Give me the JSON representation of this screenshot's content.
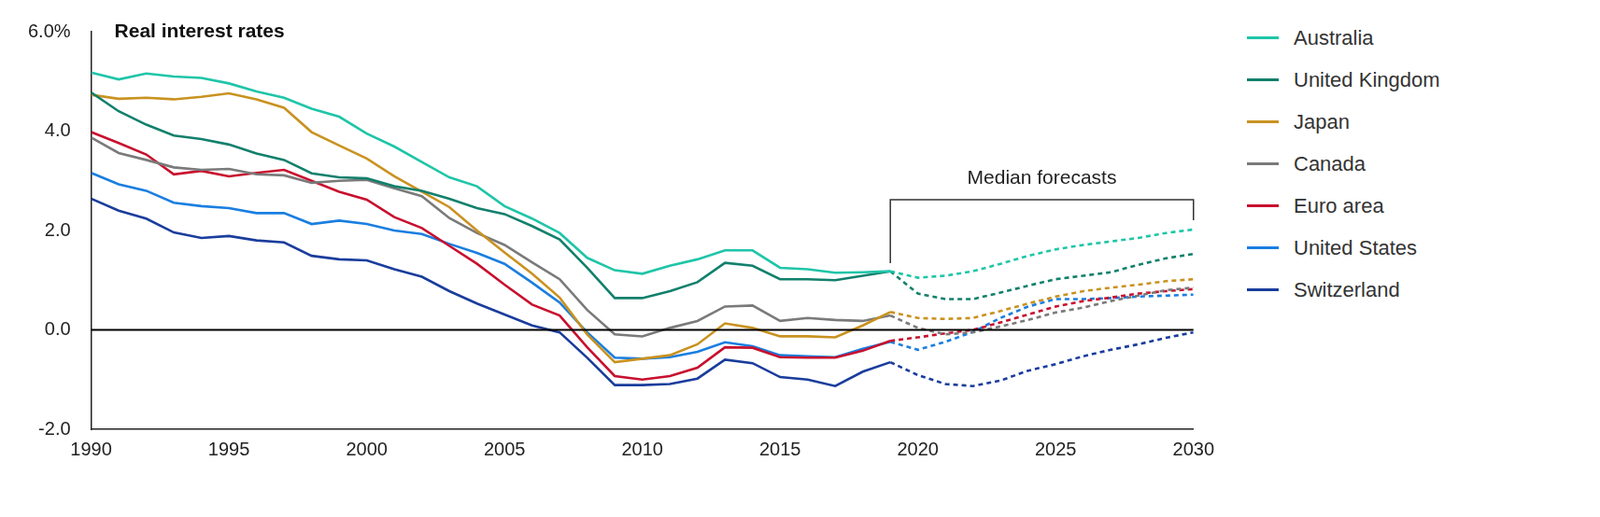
{
  "chart_data": {
    "type": "line",
    "title": "Real interest rates",
    "annotations": [
      {
        "text": "Median forecasts",
        "x": [
          2019,
          2030
        ]
      }
    ],
    "x": [
      1990,
      1991,
      1992,
      1993,
      1994,
      1995,
      1996,
      1997,
      1998,
      1999,
      2000,
      2001,
      2002,
      2003,
      2004,
      2005,
      2006,
      2007,
      2008,
      2009,
      2010,
      2011,
      2012,
      2013,
      2014,
      2015,
      2016,
      2017,
      2018,
      2019,
      2020,
      2021,
      2022,
      2023,
      2024,
      2025,
      2026,
      2027,
      2028,
      2029,
      2030
    ],
    "xlim": [
      1990,
      2030
    ],
    "xticks": [
      1990,
      1995,
      2000,
      2005,
      2010,
      2015,
      2020,
      2025,
      2030
    ],
    "ylim": [
      -2,
      6
    ],
    "yticks": [
      {
        "value": -2,
        "label": "-2.0"
      },
      {
        "value": 0,
        "label": "0.0"
      },
      {
        "value": 2,
        "label": "2.0"
      },
      {
        "value": 4,
        "label": "4.0"
      },
      {
        "value": 6,
        "label": "6.0%"
      }
    ],
    "grid": false,
    "legend": "right",
    "series": [
      {
        "name": "Australia",
        "color": "#1fc5a8",
        "values": [
          5.18,
          5.04,
          5.16,
          5.1,
          5.07,
          4.96,
          4.8,
          4.67,
          4.45,
          4.29,
          3.95,
          3.69,
          3.38,
          3.07,
          2.89,
          2.49,
          2.24,
          1.95,
          1.45,
          1.2,
          1.13,
          1.29,
          1.42,
          1.6,
          1.6,
          1.25,
          1.22,
          1.15,
          1.16,
          1.18,
          1.05,
          1.09,
          1.18,
          1.33,
          1.49,
          1.62,
          1.71,
          1.78,
          1.85,
          1.95,
          2.02
        ]
      },
      {
        "name": "United Kingdom",
        "color": "#12806c",
        "values": [
          4.78,
          4.4,
          4.13,
          3.91,
          3.84,
          3.73,
          3.55,
          3.42,
          3.15,
          3.07,
          3.05,
          2.89,
          2.8,
          2.64,
          2.45,
          2.33,
          2.09,
          1.82,
          1.25,
          0.64,
          0.64,
          0.78,
          0.96,
          1.35,
          1.29,
          1.02,
          1.02,
          1.0,
          1.09,
          1.18,
          0.73,
          0.62,
          0.62,
          0.75,
          0.89,
          1.02,
          1.09,
          1.16,
          1.31,
          1.44,
          1.53
        ]
      },
      {
        "name": "Japan",
        "color": "#c99220",
        "values": [
          4.73,
          4.65,
          4.67,
          4.64,
          4.69,
          4.76,
          4.64,
          4.47,
          3.98,
          3.71,
          3.45,
          3.09,
          2.78,
          2.47,
          2.0,
          1.56,
          1.13,
          0.65,
          -0.09,
          -0.65,
          -0.58,
          -0.51,
          -0.29,
          0.13,
          0.04,
          -0.13,
          -0.13,
          -0.15,
          0.09,
          0.36,
          0.24,
          0.22,
          0.24,
          0.38,
          0.53,
          0.67,
          0.78,
          0.85,
          0.91,
          0.98,
          1.02
        ]
      },
      {
        "name": "Canada",
        "color": "#7a7a7a",
        "values": [
          3.87,
          3.56,
          3.42,
          3.27,
          3.22,
          3.24,
          3.13,
          3.11,
          2.96,
          3.0,
          3.02,
          2.85,
          2.69,
          2.25,
          1.95,
          1.71,
          1.36,
          1.02,
          0.4,
          -0.09,
          -0.13,
          0.04,
          0.18,
          0.47,
          0.49,
          0.18,
          0.24,
          0.2,
          0.18,
          0.29,
          0.04,
          -0.09,
          -0.05,
          0.07,
          0.2,
          0.35,
          0.45,
          0.58,
          0.69,
          0.8,
          0.85
        ]
      },
      {
        "name": "Euro area",
        "color": "#c8102e",
        "values": [
          3.98,
          3.76,
          3.53,
          3.13,
          3.2,
          3.09,
          3.16,
          3.22,
          3.0,
          2.78,
          2.62,
          2.27,
          2.05,
          1.69,
          1.33,
          0.91,
          0.51,
          0.29,
          -0.35,
          -0.93,
          -1.0,
          -0.93,
          -0.76,
          -0.35,
          -0.36,
          -0.55,
          -0.56,
          -0.56,
          -0.42,
          -0.22,
          -0.15,
          -0.07,
          0.0,
          0.15,
          0.31,
          0.47,
          0.58,
          0.65,
          0.73,
          0.78,
          0.82
        ]
      },
      {
        "name": "United States",
        "color": "#1a7ee0",
        "values": [
          3.16,
          2.93,
          2.8,
          2.56,
          2.49,
          2.45,
          2.35,
          2.35,
          2.13,
          2.2,
          2.13,
          2.0,
          1.93,
          1.73,
          1.55,
          1.33,
          0.95,
          0.55,
          -0.05,
          -0.56,
          -0.58,
          -0.55,
          -0.44,
          -0.25,
          -0.33,
          -0.51,
          -0.53,
          -0.55,
          -0.38,
          -0.24,
          -0.4,
          -0.24,
          -0.04,
          0.24,
          0.47,
          0.62,
          0.62,
          0.64,
          0.67,
          0.69,
          0.71
        ]
      },
      {
        "name": "Switzerland",
        "color": "#1a3d9c",
        "values": [
          2.64,
          2.4,
          2.24,
          1.96,
          1.85,
          1.89,
          1.8,
          1.76,
          1.49,
          1.42,
          1.4,
          1.22,
          1.07,
          0.78,
          0.53,
          0.31,
          0.09,
          -0.05,
          -0.56,
          -1.11,
          -1.11,
          -1.09,
          -0.98,
          -0.6,
          -0.67,
          -0.95,
          -1.0,
          -1.13,
          -0.84,
          -0.65,
          -0.91,
          -1.09,
          -1.13,
          -1.02,
          -0.82,
          -0.69,
          -0.53,
          -0.4,
          -0.29,
          -0.16,
          -0.05
        ]
      }
    ]
  }
}
